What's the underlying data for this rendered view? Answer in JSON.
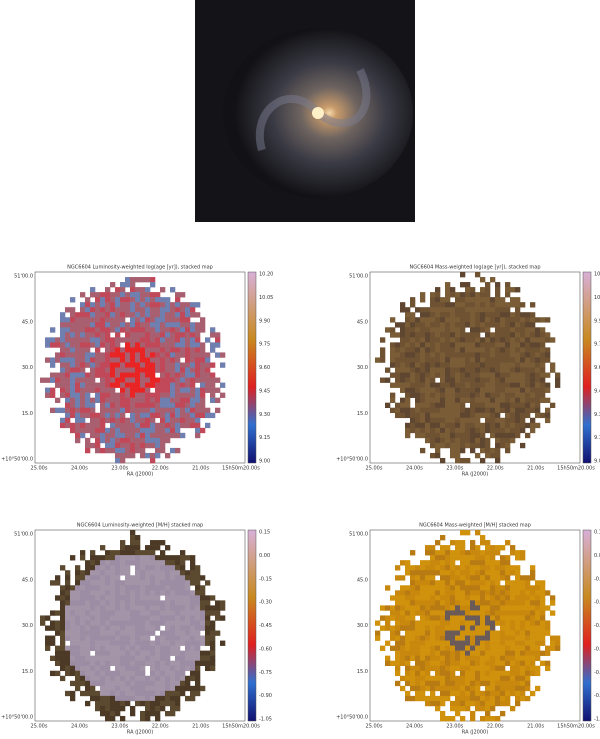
{
  "panels": [
    {
      "title": "NGC6604 Luminosity-weighted log(age [yr]), stacked map",
      "x_label": "RA (J2000)",
      "x_ticks": [
        "25.00s",
        "24.00s",
        "23.00s",
        "22.00s",
        "21.00s",
        "15h50m20.00s"
      ],
      "y_ticks": [
        "51'00.0",
        "45.0",
        "30.0",
        "15.0",
        "+10°50'00.0"
      ],
      "colorbar_ticks": [
        "10.20",
        "10.05",
        "9.90",
        "9.75",
        "9.60",
        "9.45",
        "9.30",
        "9.15",
        "9.00"
      ]
    },
    {
      "title": "NGC6604 Mass-weighted log(age [yr]), stacked map",
      "x_label": "RA (J2000)",
      "x_ticks": [
        "25.00s",
        "24.00s",
        "23.00s",
        "22.00s",
        "21.00s",
        "15h50m20.00s"
      ],
      "y_ticks": [
        "51'00.0",
        "45.0",
        "30.0",
        "15.0",
        "+10°50'00.0"
      ],
      "colorbar_ticks": [
        "10.20",
        "10.05",
        "9.90",
        "9.75",
        "9.60",
        "9.45",
        "9.30",
        "9.15",
        "9.00"
      ]
    },
    {
      "title": "NGC6604 Luminosity-weighted [M/H] stacked map",
      "x_label": "RA (J2000)",
      "x_ticks": [
        "25.00s",
        "24.00s",
        "23.00s",
        "22.00s",
        "21.00s",
        "15h50m20.00s"
      ],
      "y_ticks": [
        "51'00.0",
        "45.0",
        "30.0",
        "15.0",
        "+10°50'00.0"
      ],
      "colorbar_ticks": [
        "0.15",
        "0.00",
        "-0.15",
        "-0.30",
        "-0.45",
        "-0.60",
        "-0.75",
        "-0.90",
        "-1.05"
      ]
    },
    {
      "title": "NGC6604 Mass-weighted [M/H] stacked map",
      "x_label": "RA (J2000)",
      "x_ticks": [
        "25.00s",
        "24.00s",
        "23.00s",
        "22.00s",
        "21.00s",
        "15h50m20.00s"
      ],
      "y_ticks": [
        "51'00.0",
        "45.0",
        "30.0",
        "15.0",
        "+10°50'00.0"
      ],
      "colorbar_ticks": [
        "0.15",
        "0.00",
        "-0.15",
        "-0.30",
        "-0.45",
        "-0.60",
        "-0.75",
        "-0.90",
        "-1.05"
      ]
    }
  ]
}
